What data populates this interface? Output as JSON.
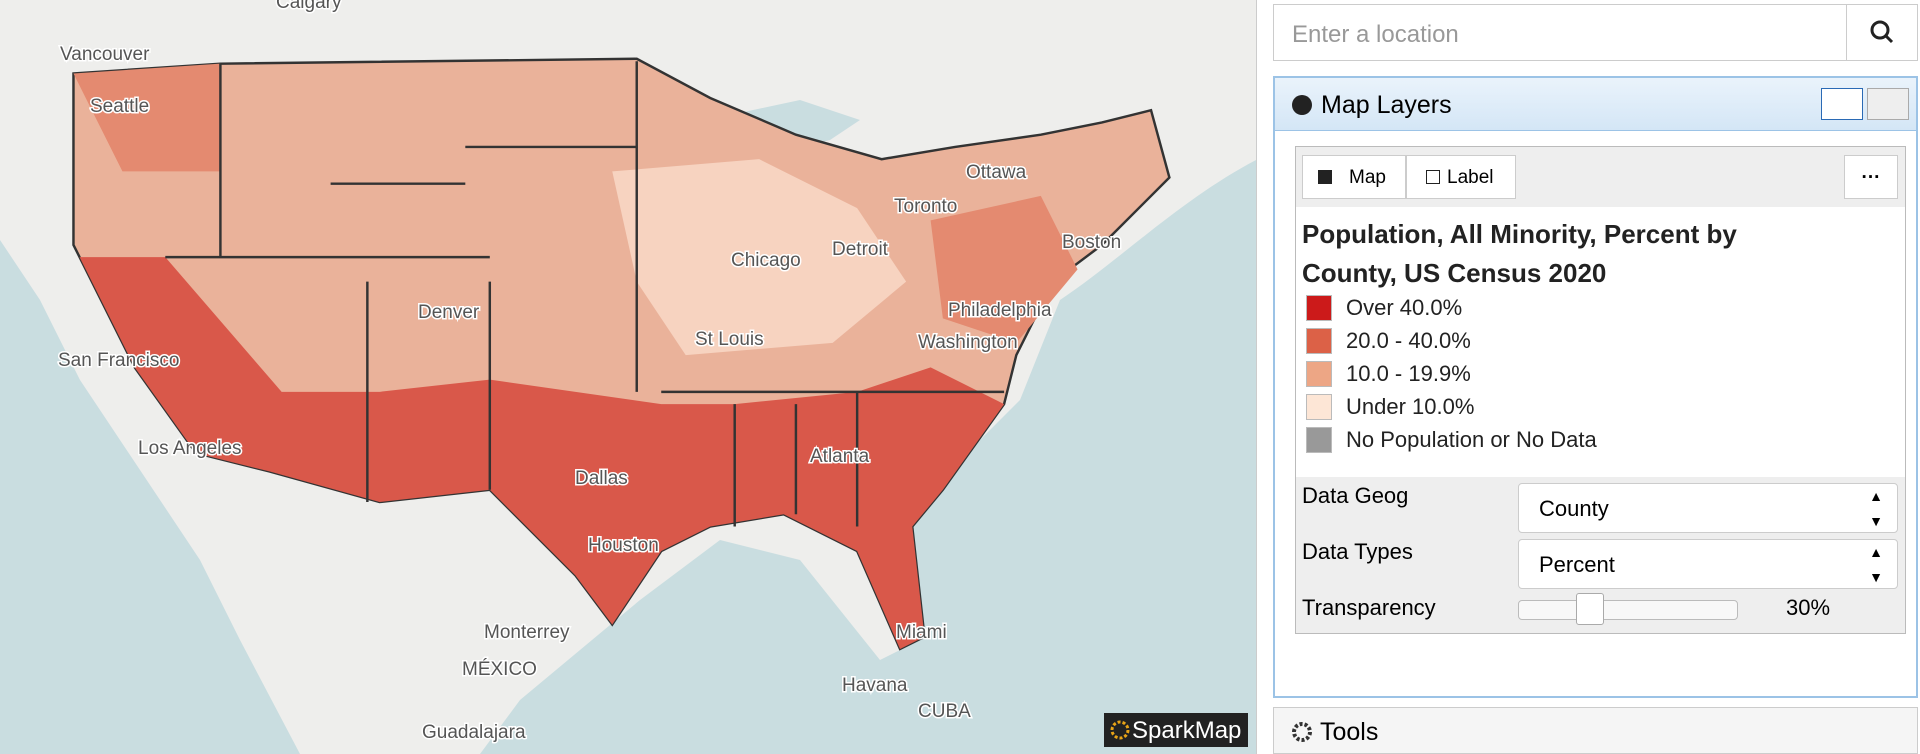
{
  "search": {
    "placeholder": "Enter a location"
  },
  "map": {
    "labels": [
      "Calgary",
      "Vancouver",
      "Seattle",
      "Ottawa",
      "Toronto",
      "Detroit",
      "Chicago",
      "Boston",
      "Philadelphia",
      "Washington",
      "Denver",
      "St Louis",
      "San Francisco",
      "Los Angeles",
      "Dallas",
      "Atlanta",
      "Houston",
      "Monterrey",
      "Miami",
      "MÉXICO",
      "Havana",
      "CUBA",
      "Guadalajara"
    ],
    "attribution": "SparkMap"
  },
  "panel": {
    "title": "Map Layers",
    "tabs": [
      "Map",
      "Label"
    ],
    "layer_title": "Population, All Minority, Percent by County, US Census 2020",
    "legend": [
      {
        "label": "Over 40.0%",
        "color": "#cc1a1a"
      },
      {
        "label": "20.0 - 40.0%",
        "color": "#dc6147"
      },
      {
        "label": "10.0 - 19.9%",
        "color": "#eda685"
      },
      {
        "label": "Under 10.0%",
        "color": "#fde6d6"
      },
      {
        "label": "No Population or No Data",
        "color": "#999999"
      }
    ],
    "settings": [
      {
        "label": "Data Geog",
        "value": "County"
      },
      {
        "label": "Data Types",
        "value": "Percent"
      }
    ],
    "transparency": {
      "label": "Transparency",
      "value": "30%"
    }
  },
  "tools": {
    "title": "Tools"
  }
}
